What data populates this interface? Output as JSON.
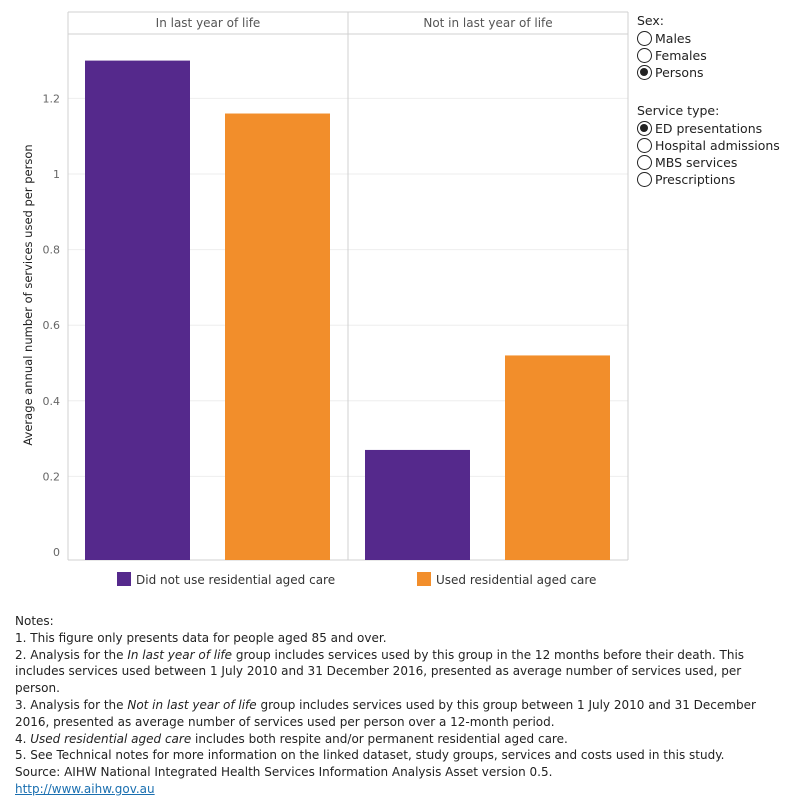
{
  "chart_data": {
    "type": "bar",
    "panels": [
      "In last year of life",
      "Not in last year of life"
    ],
    "ylabel": "Average annual number of services used per person",
    "ylim": [
      0,
      1.4
    ],
    "yticks": [
      0,
      0.2,
      0.4,
      0.6,
      0.8,
      1,
      1.2
    ],
    "series": [
      {
        "name": "Did not use residential aged care",
        "color": "#55298c",
        "values": [
          1.3,
          0.27
        ]
      },
      {
        "name": "Used residential aged care",
        "color": "#f28e2b",
        "values": [
          1.16,
          0.52
        ]
      }
    ],
    "grid": true,
    "legend_position": "bottom"
  },
  "controls": {
    "sex": {
      "title": "Sex:",
      "options": [
        {
          "label": "Males",
          "checked": false
        },
        {
          "label": "Females",
          "checked": false
        },
        {
          "label": "Persons",
          "checked": true
        }
      ]
    },
    "service_type": {
      "title": "Service type:",
      "options": [
        {
          "label": "ED presentations",
          "checked": true
        },
        {
          "label": "Hospital admissions",
          "checked": false
        },
        {
          "label": "MBS services",
          "checked": false
        },
        {
          "label": "Prescriptions",
          "checked": false
        }
      ]
    }
  },
  "notes": {
    "heading": "Notes:",
    "n1": "1.  This figure only presents data for people aged 85 and over.",
    "n2_a": "2.  Analysis for the ",
    "n2_em": "In last year of life",
    "n2_b": " group includes services used by this group in the 12 months before their death. This includes services used between 1 July 2010 and 31 December 2016, presented as average number of services used, per person.",
    "n3_a": "3.  Analysis for the ",
    "n3_em": "Not in last year of life",
    "n3_b": " group includes services used by this group between 1 July 2010 and 31 December 2016, presented as average number of services used per person over a 12-month period.",
    "n4_a": "4.  ",
    "n4_em": "Used residential aged care",
    "n4_b": " includes both respite and/or permanent residential aged care.",
    "n5": "5.  See Technical notes for more information on the linked dataset, study groups, services and costs used in this study.",
    "source": "Source: AIHW National Integrated Health Services Information Analysis Asset version 0.5.",
    "link": "http://www.aihw.gov.au"
  }
}
